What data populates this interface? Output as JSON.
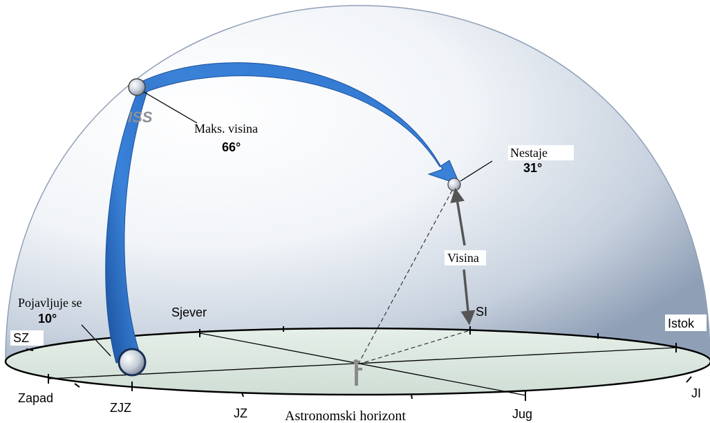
{
  "satellite": {
    "name": "ISS"
  },
  "labels": {
    "max_altitude": {
      "text": "Maks. visina",
      "value": "66°"
    },
    "disappears": {
      "text": "Nestaje",
      "value": "31°"
    },
    "appears": {
      "text": "Pojavljuje se",
      "value": "10°"
    },
    "altitude": "Visina",
    "horizon": "Astronomski horizont"
  },
  "directions": {
    "north": "Sjever",
    "northeast": "SI",
    "east": "Istok",
    "southeast": "JI",
    "south": "Jug",
    "southwest": "JZ",
    "west_southwest": "ZJZ",
    "west": "Zapad",
    "northwest": "SZ"
  },
  "colors": {
    "dome_edge": "#8f9fb6",
    "dome_light": "#ffffff",
    "horizon_fill": "#d9e7df",
    "path_blue": "#2f74cf",
    "path_dark": "#1a4f9c",
    "sphere": "#c4ccd8"
  }
}
